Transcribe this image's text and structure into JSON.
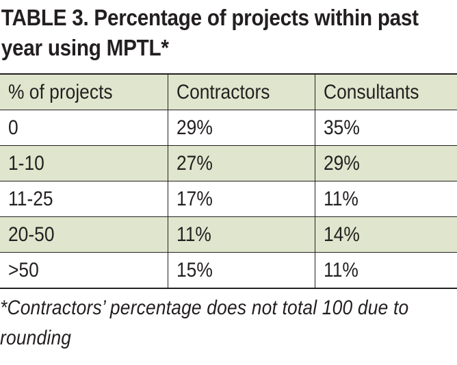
{
  "title": "TABLE 3. Percentage of projects within past year using MPTL*",
  "table": {
    "headers": [
      "% of projects",
      "Contractors",
      "Consultants"
    ],
    "rows": [
      [
        "0",
        "29%",
        "35%"
      ],
      [
        "1-10",
        "27%",
        "29%"
      ],
      [
        "11-25",
        "17%",
        "11%"
      ],
      [
        "20-50",
        "11%",
        "14%"
      ],
      [
        ">50",
        "15%",
        "11%"
      ]
    ]
  },
  "footnote": "*Contractors’ percentage does not total 100 due to rounding",
  "colors": {
    "stripe": "#dfe6cd",
    "text": "#231f20",
    "rule": "#231f20"
  }
}
